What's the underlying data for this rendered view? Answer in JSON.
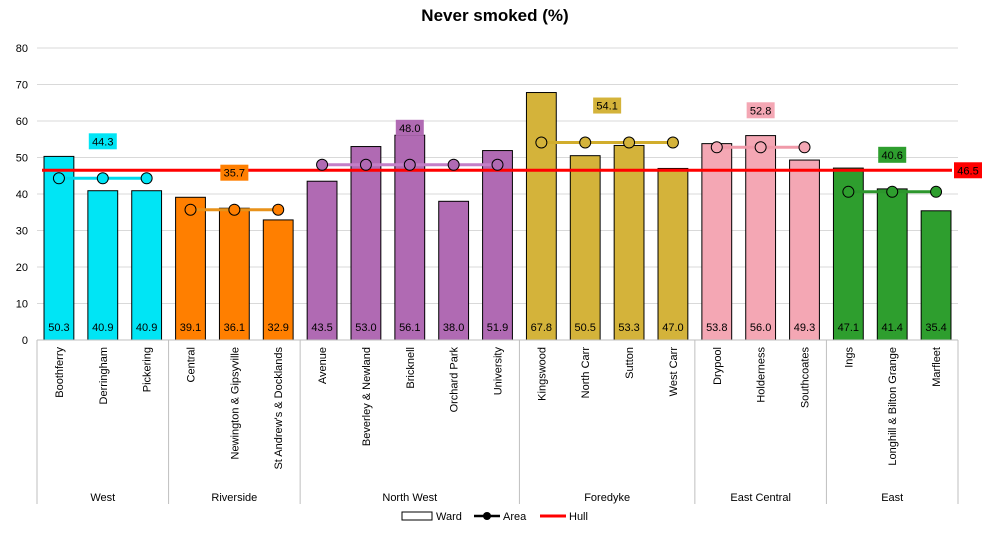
{
  "chart_data": {
    "type": "bar",
    "title": "Never smoked (%)",
    "ylim": [
      0,
      80
    ],
    "yticks": [
      0,
      10,
      20,
      30,
      40,
      50,
      60,
      70,
      80
    ],
    "grid": true,
    "legend_position": "bottom",
    "legend": {
      "ward": "Ward",
      "area": "Area",
      "hull": "Hull"
    },
    "hull": {
      "value": 46.5,
      "label": "46.5",
      "color": "#ff0000"
    },
    "groups": [
      {
        "name": "West",
        "color": "#00e5f5",
        "area_value": 44.3,
        "area_label": "44.3",
        "line_color": "#00d8ec",
        "wards": [
          {
            "name": "Boothferry",
            "value": 50.3,
            "label": "50.3"
          },
          {
            "name": "Derringham",
            "value": 40.9,
            "label": "40.9"
          },
          {
            "name": "Pickering",
            "value": 40.9,
            "label": "40.9"
          }
        ]
      },
      {
        "name": "Riverside",
        "color": "#ff7f00",
        "area_value": 35.7,
        "area_label": "35.7",
        "line_color": "#e8921a",
        "wards": [
          {
            "name": "Central",
            "value": 39.1,
            "label": "39.1"
          },
          {
            "name": "Newington & Gipsyville",
            "value": 36.1,
            "label": "36.1"
          },
          {
            "name": "St Andrew's & Docklands",
            "value": 32.9,
            "label": "32.9"
          }
        ]
      },
      {
        "name": "North West",
        "color": "#b06ab3",
        "area_value": 48.0,
        "area_label": "48.0",
        "line_color": "#c47ec7",
        "wards": [
          {
            "name": "Avenue",
            "value": 43.5,
            "label": "43.5"
          },
          {
            "name": "Beverley & Newland",
            "value": 53.0,
            "label": "53.0"
          },
          {
            "name": "Bricknell",
            "value": 56.1,
            "label": "56.1"
          },
          {
            "name": "Orchard Park",
            "value": 38.0,
            "label": "38.0"
          },
          {
            "name": "University",
            "value": 51.9,
            "label": "51.9"
          }
        ]
      },
      {
        "name": "Foredyke",
        "color": "#d4b33a",
        "area_value": 54.1,
        "area_label": "54.1",
        "line_color": "#d1ad2c",
        "wards": [
          {
            "name": "Kingswood",
            "value": 67.8,
            "label": "67.8"
          },
          {
            "name": "North Carr",
            "value": 50.5,
            "label": "50.5"
          },
          {
            "name": "Sutton",
            "value": 53.3,
            "label": "53.3"
          },
          {
            "name": "West Carr",
            "value": 47.0,
            "label": "47.0"
          }
        ]
      },
      {
        "name": "East Central",
        "color": "#f4a7b4",
        "area_value": 52.8,
        "area_label": "52.8",
        "line_color": "#f09aa9",
        "wards": [
          {
            "name": "Drypool",
            "value": 53.8,
            "label": "53.8"
          },
          {
            "name": "Holderness",
            "value": 56.0,
            "label": "56.0"
          },
          {
            "name": "Southcoates",
            "value": 49.3,
            "label": "49.3"
          }
        ]
      },
      {
        "name": "East",
        "color": "#2e9e2e",
        "area_value": 40.6,
        "area_label": "40.6",
        "line_color": "#2c962c",
        "wards": [
          {
            "name": "Ings",
            "value": 47.1,
            "label": "47.1"
          },
          {
            "name": "Longhill & Bilton Grange",
            "value": 41.4,
            "label": "41.4"
          },
          {
            "name": "Marfleet",
            "value": 35.4,
            "label": "35.4"
          }
        ]
      }
    ]
  }
}
